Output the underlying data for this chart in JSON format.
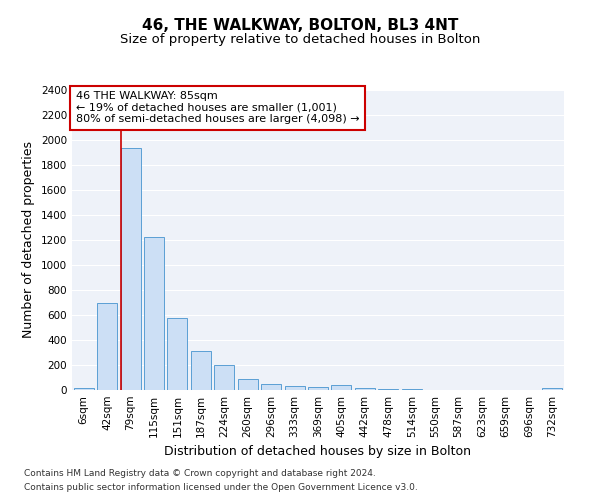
{
  "title": "46, THE WALKWAY, BOLTON, BL3 4NT",
  "subtitle": "Size of property relative to detached houses in Bolton",
  "xlabel": "Distribution of detached houses by size in Bolton",
  "ylabel": "Number of detached properties",
  "bar_color": "#ccdff5",
  "bar_edge_color": "#5a9fd4",
  "categories": [
    "6sqm",
    "42sqm",
    "79sqm",
    "115sqm",
    "151sqm",
    "187sqm",
    "224sqm",
    "260sqm",
    "296sqm",
    "333sqm",
    "369sqm",
    "405sqm",
    "442sqm",
    "478sqm",
    "514sqm",
    "550sqm",
    "587sqm",
    "623sqm",
    "659sqm",
    "696sqm",
    "732sqm"
  ],
  "values": [
    18,
    700,
    1940,
    1225,
    575,
    310,
    200,
    85,
    48,
    35,
    25,
    40,
    15,
    12,
    5,
    4,
    3,
    2,
    2,
    2,
    15
  ],
  "vline_bin_index": 2,
  "annotation_text": "46 THE WALKWAY: 85sqm\n← 19% of detached houses are smaller (1,001)\n80% of semi-detached houses are larger (4,098) →",
  "annotation_box_color": "#ffffff",
  "annotation_box_edge_color": "#cc0000",
  "vline_color": "#cc0000",
  "ylim": [
    0,
    2400
  ],
  "yticks": [
    0,
    200,
    400,
    600,
    800,
    1000,
    1200,
    1400,
    1600,
    1800,
    2000,
    2200,
    2400
  ],
  "footer_line1": "Contains HM Land Registry data © Crown copyright and database right 2024.",
  "footer_line2": "Contains public sector information licensed under the Open Government Licence v3.0.",
  "bg_color": "#eef2f9",
  "grid_color": "#ffffff",
  "title_fontsize": 11,
  "subtitle_fontsize": 9.5,
  "axis_label_fontsize": 9,
  "tick_fontsize": 7.5,
  "annotation_fontsize": 8,
  "footer_fontsize": 6.5
}
